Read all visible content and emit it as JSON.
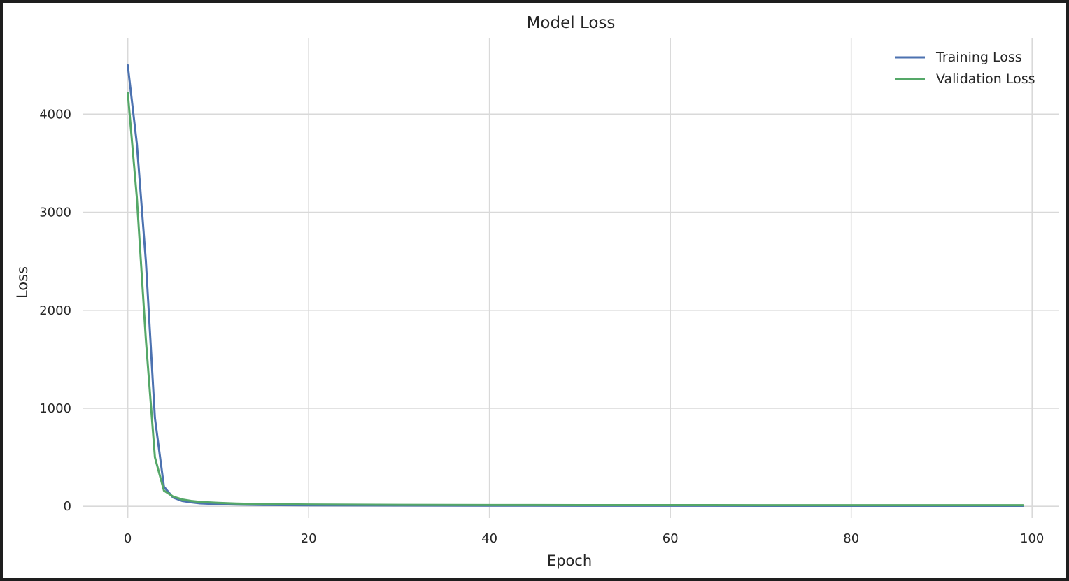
{
  "chart_data": {
    "type": "line",
    "title": "Model Loss",
    "xlabel": "Epoch",
    "ylabel": "Loss",
    "xlim": [
      -5,
      103
    ],
    "ylim": [
      -120,
      4780
    ],
    "xticks": [
      0,
      20,
      40,
      60,
      80,
      100
    ],
    "yticks": [
      0,
      1000,
      2000,
      3000,
      4000
    ],
    "grid": true,
    "legend_position": "top-right",
    "series": [
      {
        "name": "Training Loss",
        "color": "#4c72b0",
        "x": [
          0,
          1,
          2,
          3,
          4,
          5,
          6,
          7,
          8,
          10,
          12,
          15,
          20,
          30,
          40,
          50,
          60,
          70,
          80,
          90,
          99
        ],
        "y": [
          4500,
          3700,
          2500,
          900,
          200,
          90,
          55,
          40,
          30,
          22,
          17,
          13,
          10,
          8,
          7,
          6,
          6,
          5,
          5,
          5,
          5
        ]
      },
      {
        "name": "Validation Loss",
        "color": "#55a868",
        "x": [
          0,
          1,
          2,
          3,
          4,
          5,
          6,
          7,
          8,
          10,
          12,
          15,
          20,
          30,
          40,
          50,
          60,
          70,
          80,
          90,
          99
        ],
        "y": [
          4220,
          3150,
          1700,
          500,
          160,
          100,
          70,
          55,
          45,
          35,
          28,
          22,
          18,
          15,
          13,
          12,
          12,
          11,
          11,
          11,
          11
        ]
      }
    ]
  }
}
